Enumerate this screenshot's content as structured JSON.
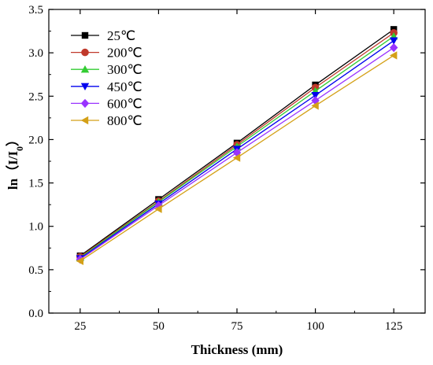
{
  "chart_data": {
    "type": "line",
    "xlabel": "Thickness (mm)",
    "ylabel": {
      "prefix": "ln（I/I",
      "subscript": "0",
      "suffix": "）"
    },
    "xlim": [
      15,
      135
    ],
    "ylim": [
      0.0,
      3.5
    ],
    "xticks": [
      25,
      50,
      75,
      100,
      125
    ],
    "yticks": [
      0.0,
      0.5,
      1.0,
      1.5,
      2.0,
      2.5,
      3.0,
      3.5
    ],
    "ytick_labels": [
      "0.0",
      "0.5",
      "1.0",
      "1.5",
      "2.0",
      "2.5",
      "3.0",
      "3.5"
    ],
    "legend_position": "top-left",
    "grid": false,
    "x": [
      25,
      50,
      75,
      100,
      125
    ],
    "series": [
      {
        "name": "25℃",
        "color": "#000000",
        "marker": "square",
        "values": [
          0.66,
          1.31,
          1.96,
          2.63,
          3.27
        ]
      },
      {
        "name": "200℃",
        "color": "#c0392b",
        "marker": "circle",
        "values": [
          0.65,
          1.29,
          1.94,
          2.6,
          3.23
        ]
      },
      {
        "name": "300℃",
        "color": "#33cc33",
        "marker": "triangle-up",
        "values": [
          0.64,
          1.28,
          1.92,
          2.56,
          3.19
        ]
      },
      {
        "name": "450℃",
        "color": "#0000ee",
        "marker": "triangle-down",
        "values": [
          0.63,
          1.26,
          1.89,
          2.51,
          3.14
        ]
      },
      {
        "name": "600℃",
        "color": "#9933ff",
        "marker": "diamond",
        "values": [
          0.62,
          1.24,
          1.85,
          2.45,
          3.06
        ]
      },
      {
        "name": "800℃",
        "color": "#d4a017",
        "marker": "triangle-left",
        "values": [
          0.6,
          1.2,
          1.79,
          2.39,
          2.97
        ]
      }
    ]
  }
}
